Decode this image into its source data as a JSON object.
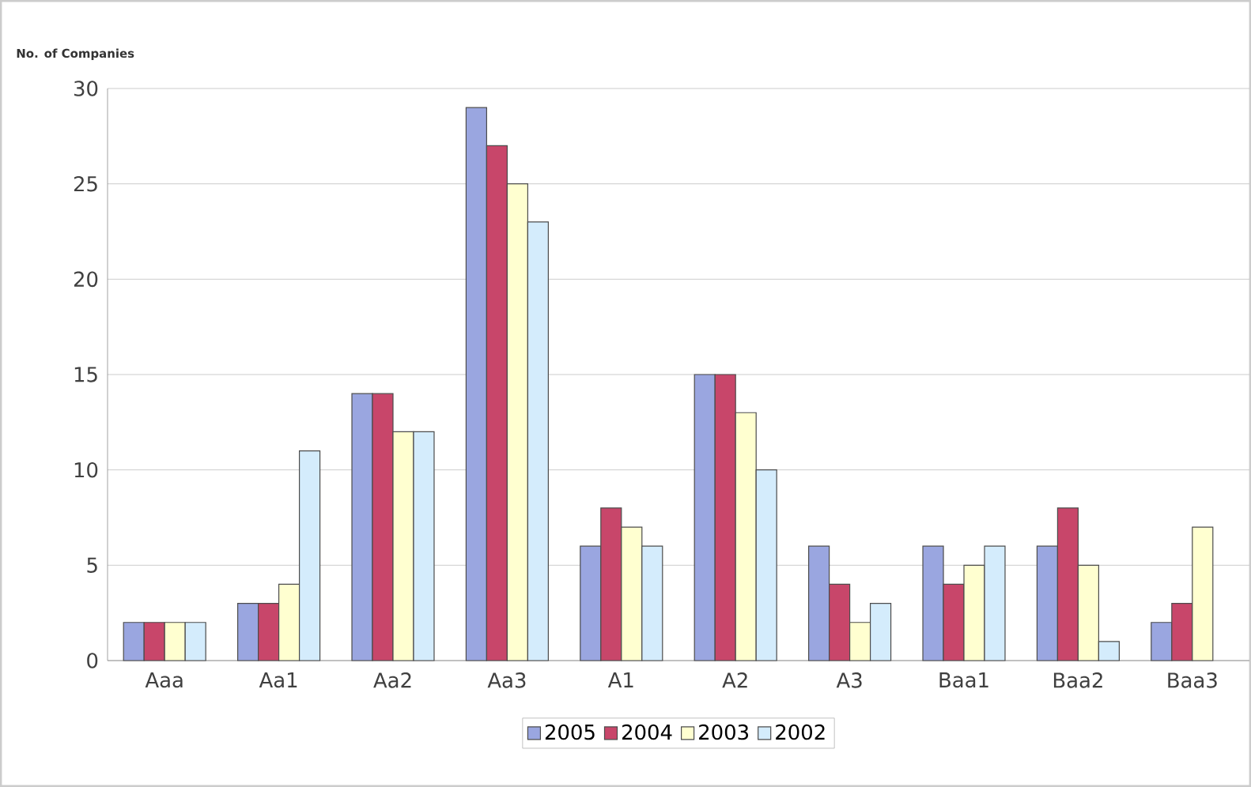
{
  "chart_data": {
    "type": "bar",
    "ylabel": "No. of Companies",
    "categories": [
      "Aaa",
      "Aa1",
      "Aa2",
      "Aa3",
      "A1",
      "A2",
      "A3",
      "Baa1",
      "Baa2",
      "Baa3"
    ],
    "series": [
      {
        "name": "2005",
        "color": "#9aa6e0",
        "values": [
          2,
          3,
          14,
          29,
          6,
          15,
          6,
          6,
          6,
          2
        ]
      },
      {
        "name": "2004",
        "color": "#c8466a",
        "values": [
          2,
          3,
          14,
          27,
          8,
          15,
          4,
          4,
          8,
          3
        ]
      },
      {
        "name": "2003",
        "color": "#ffffd0",
        "values": [
          2,
          4,
          12,
          25,
          7,
          13,
          2,
          5,
          5,
          7
        ]
      },
      {
        "name": "2002",
        "color": "#d4ecfc",
        "values": [
          2,
          11,
          12,
          23,
          6,
          10,
          3,
          6,
          1,
          null
        ]
      }
    ],
    "ylim": [
      0,
      30
    ],
    "yticks": [
      0,
      5,
      10,
      15,
      20,
      25,
      30
    ],
    "grid": "y",
    "legend": "bottom"
  }
}
